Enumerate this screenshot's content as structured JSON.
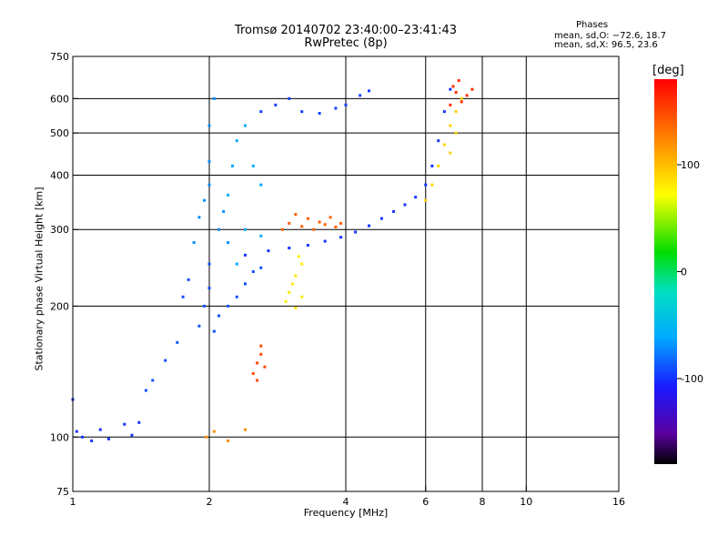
{
  "header": {
    "title_line1": "Tromsø 20140702 23:40:00–23:41:43",
    "title_line2": "RwPretec (8p)",
    "phase_heading": "Phases",
    "stat_o": "mean, sd,O: −72.6, 18.7",
    "stat_x": "mean, sd,X:  96.5, 23.6"
  },
  "chart_data": {
    "type": "scatter",
    "title": "Tromsø 20140702 23:40:00–23:41:43",
    "subtitle": "RwPretec (8p)",
    "xlabel": "Frequency [MHz]",
    "ylabel": "Stationary phase Virtual Height [km]",
    "x_scale": "log",
    "y_scale": "log",
    "xlim": [
      1,
      16
    ],
    "ylim": [
      75,
      750
    ],
    "x_ticks": [
      1,
      2,
      4,
      6,
      8,
      10,
      16
    ],
    "y_ticks": [
      75,
      100,
      200,
      300,
      400,
      500,
      600,
      750
    ],
    "x_gridlines": [
      2,
      4,
      6,
      8,
      10
    ],
    "y_gridlines": [
      100,
      200,
      300,
      400,
      500,
      600
    ],
    "colorbar": {
      "label": "[deg]",
      "range": [
        -180,
        180
      ],
      "ticks": [
        100,
        0,
        -100
      ],
      "colormap": "rainbow"
    },
    "series": [
      {
        "phase": -100,
        "points": [
          [
            1.0,
            122
          ],
          [
            1.02,
            103
          ],
          [
            1.05,
            100
          ],
          [
            1.1,
            98
          ],
          [
            1.15,
            104
          ],
          [
            1.2,
            99
          ],
          [
            1.3,
            107
          ],
          [
            1.35,
            101
          ],
          [
            1.4,
            108
          ]
        ]
      },
      {
        "phase": -90,
        "points": [
          [
            1.45,
            128
          ],
          [
            1.5,
            135
          ],
          [
            1.6,
            150
          ],
          [
            1.7,
            165
          ],
          [
            1.75,
            210
          ],
          [
            1.8,
            230
          ],
          [
            1.9,
            180
          ],
          [
            1.95,
            200
          ],
          [
            2.0,
            220
          ],
          [
            2.0,
            250
          ],
          [
            2.05,
            175
          ],
          [
            2.1,
            190
          ],
          [
            2.2,
            200
          ],
          [
            2.3,
            210
          ],
          [
            2.4,
            225
          ],
          [
            2.5,
            240
          ],
          [
            2.6,
            245
          ]
        ]
      },
      {
        "phase": -70,
        "points": [
          [
            1.85,
            280
          ],
          [
            1.9,
            320
          ],
          [
            1.95,
            350
          ],
          [
            2.0,
            380
          ],
          [
            2.0,
            430
          ],
          [
            2.0,
            520
          ],
          [
            2.05,
            600
          ],
          [
            2.1,
            300
          ],
          [
            2.15,
            330
          ],
          [
            2.2,
            280
          ]
        ]
      },
      {
        "phase": -60,
        "points": [
          [
            2.2,
            360
          ],
          [
            2.25,
            420
          ],
          [
            2.3,
            480
          ],
          [
            2.4,
            520
          ],
          [
            2.5,
            420
          ],
          [
            2.6,
            380
          ],
          [
            2.4,
            300
          ],
          [
            2.3,
            250
          ],
          [
            2.6,
            290
          ]
        ]
      },
      {
        "phase": -95,
        "points": [
          [
            2.6,
            560
          ],
          [
            2.8,
            580
          ],
          [
            3.0,
            600
          ],
          [
            3.2,
            560
          ],
          [
            3.5,
            555
          ],
          [
            3.8,
            570
          ],
          [
            4.0,
            580
          ],
          [
            4.3,
            610
          ],
          [
            4.5,
            625
          ]
        ]
      },
      {
        "phase": -100,
        "points": [
          [
            2.4,
            262
          ],
          [
            2.7,
            268
          ],
          [
            3.0,
            272
          ],
          [
            3.3,
            276
          ],
          [
            3.6,
            282
          ],
          [
            3.9,
            288
          ],
          [
            4.2,
            296
          ],
          [
            4.5,
            306
          ],
          [
            4.8,
            318
          ],
          [
            5.1,
            330
          ],
          [
            5.4,
            342
          ],
          [
            5.7,
            356
          ],
          [
            6.0,
            380
          ],
          [
            6.2,
            420
          ],
          [
            6.4,
            480
          ],
          [
            6.6,
            560
          ],
          [
            6.8,
            630
          ]
        ]
      },
      {
        "phase": 80,
        "points": [
          [
            2.95,
            205
          ],
          [
            3.0,
            215
          ],
          [
            3.05,
            225
          ],
          [
            3.1,
            235
          ],
          [
            3.15,
            260
          ],
          [
            3.2,
            250
          ],
          [
            3.1,
            198
          ],
          [
            3.2,
            210
          ]
        ]
      },
      {
        "phase": 140,
        "points": [
          [
            2.9,
            300
          ],
          [
            3.0,
            310
          ],
          [
            3.1,
            325
          ],
          [
            3.2,
            305
          ],
          [
            3.3,
            318
          ],
          [
            3.4,
            300
          ],
          [
            3.5,
            312
          ],
          [
            3.6,
            308
          ],
          [
            3.7,
            320
          ],
          [
            3.8,
            304
          ],
          [
            3.9,
            310
          ]
        ]
      },
      {
        "phase": 150,
        "points": [
          [
            2.5,
            140
          ],
          [
            2.55,
            148
          ],
          [
            2.6,
            155
          ],
          [
            2.65,
            145
          ],
          [
            2.55,
            135
          ],
          [
            2.6,
            162
          ]
        ]
      },
      {
        "phase": 90,
        "points": [
          [
            6.0,
            350
          ],
          [
            6.2,
            380
          ],
          [
            6.4,
            420
          ],
          [
            6.6,
            470
          ],
          [
            6.8,
            520
          ],
          [
            7.0,
            560
          ],
          [
            7.2,
            600
          ],
          [
            6.8,
            450
          ],
          [
            7.0,
            500
          ]
        ]
      },
      {
        "phase": 160,
        "points": [
          [
            6.8,
            580
          ],
          [
            7.0,
            620
          ],
          [
            7.2,
            590
          ],
          [
            7.4,
            610
          ],
          [
            7.6,
            630
          ],
          [
            6.9,
            640
          ],
          [
            7.1,
            660
          ]
        ]
      },
      {
        "phase": 120,
        "points": [
          [
            1.97,
            100
          ],
          [
            2.05,
            103
          ],
          [
            2.4,
            104
          ],
          [
            2.2,
            98
          ]
        ]
      }
    ]
  }
}
